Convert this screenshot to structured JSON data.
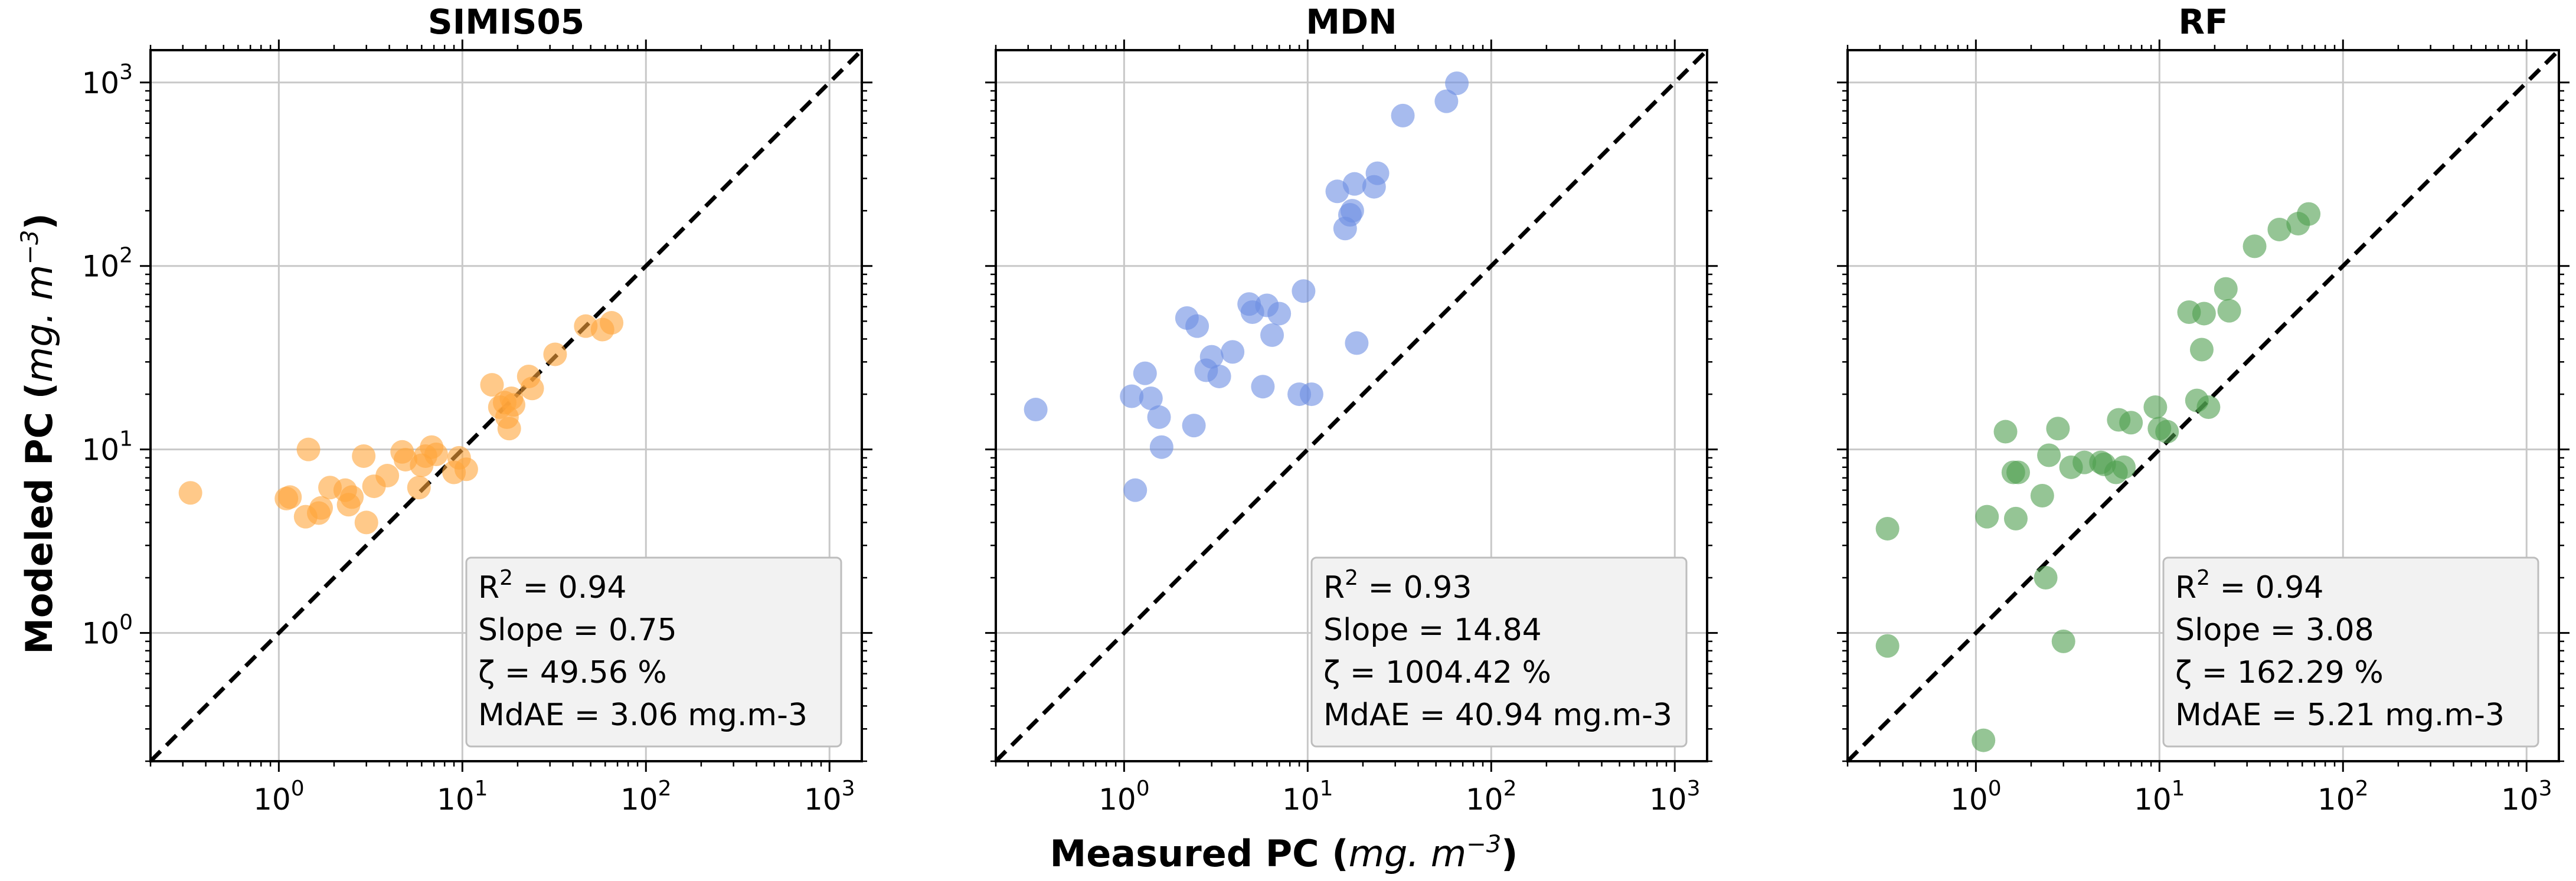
{
  "figure": {
    "xlabel": "Measured PC",
    "xlabel_unit": "mg. m",
    "xlabel_exp": "−3",
    "ylabel": "Modeled PC",
    "ylabel_unit": "mg. m",
    "ylabel_exp": "−3",
    "tick_base": "10",
    "x_tick_exps": [
      "0",
      "1",
      "2",
      "3"
    ],
    "y_tick_exps": [
      "0",
      "1",
      "2",
      "3"
    ]
  },
  "chart_data": [
    {
      "type": "scatter",
      "title": "SIMIS05",
      "xscale": "log",
      "yscale": "log",
      "xlim": [
        0.2,
        1500
      ],
      "ylim": [
        0.2,
        1500
      ],
      "grid": true,
      "reference_line": "1:1 dashed",
      "color": "#ffa53a",
      "stats": {
        "r2_label": "R",
        "r2_exp": "2",
        "r2_value": " = 0.94",
        "slope": "Slope = 0.75",
        "zeta": "ζ = 49.56 %",
        "mdae": "MdAE = 3.06 mg.m-3"
      },
      "x": [
        0.33,
        1.1,
        1.15,
        1.4,
        1.45,
        1.65,
        1.7,
        1.9,
        2.3,
        2.4,
        2.5,
        2.9,
        3.0,
        3.3,
        3.9,
        4.7,
        4.9,
        5.8,
        6.0,
        6.3,
        6.8,
        7.2,
        9.0,
        9.6,
        10.5,
        14.5,
        16.0,
        17.0,
        17.5,
        18.0,
        18.5,
        19.0,
        23.0,
        24.0,
        32.0,
        47.0,
        58.0,
        65.0
      ],
      "y": [
        5.8,
        5.4,
        5.5,
        4.3,
        10.0,
        4.5,
        4.8,
        6.2,
        6.0,
        5.0,
        5.5,
        9.2,
        4.0,
        6.3,
        7.2,
        9.7,
        8.8,
        6.2,
        8.2,
        9.2,
        10.3,
        9.4,
        7.5,
        9.0,
        7.8,
        22.5,
        17.0,
        18.0,
        15.0,
        13.0,
        19.0,
        17.5,
        25.0,
        21.5,
        33.0,
        47.0,
        45.0,
        49.0
      ]
    },
    {
      "type": "scatter",
      "title": "MDN",
      "xscale": "log",
      "yscale": "log",
      "xlim": [
        0.2,
        1500
      ],
      "ylim": [
        0.2,
        1500
      ],
      "grid": true,
      "reference_line": "1:1 dashed",
      "color": "#6c8ee2",
      "stats": {
        "r2_label": "R",
        "r2_exp": "2",
        "r2_value": " = 0.93",
        "slope": "Slope = 14.84",
        "zeta": "ζ = 1004.42 %",
        "mdae": "MdAE = 40.94 mg.m-3"
      },
      "x": [
        0.33,
        1.1,
        1.15,
        1.3,
        1.4,
        1.55,
        1.6,
        2.2,
        2.4,
        2.5,
        2.8,
        3.0,
        3.3,
        3.9,
        4.8,
        5.0,
        5.7,
        6.0,
        6.4,
        7.0,
        9.0,
        9.5,
        10.5,
        14.5,
        16.0,
        17.0,
        17.5,
        18.0,
        18.5,
        23.0,
        24.0,
        33.0,
        57.0,
        65.0
      ],
      "y": [
        16.5,
        19.5,
        6.0,
        26.0,
        19.0,
        15.0,
        10.3,
        52.0,
        13.5,
        47.0,
        27.0,
        32.0,
        25.0,
        34.0,
        62.0,
        56.0,
        22.0,
        61.0,
        42.0,
        55.0,
        20.0,
        73.0,
        20.0,
        255.0,
        160.0,
        190.0,
        200.0,
        280.0,
        38.0,
        270.0,
        320.0,
        660.0,
        790.0,
        990.0
      ]
    },
    {
      "type": "scatter",
      "title": "RF",
      "xscale": "log",
      "yscale": "log",
      "xlim": [
        0.2,
        1500
      ],
      "ylim": [
        0.2,
        1500
      ],
      "grid": true,
      "reference_line": "1:1 dashed",
      "color": "#4e9e4e",
      "stats": {
        "r2_label": "R",
        "r2_exp": "2",
        "r2_value": " = 0.94",
        "slope": "Slope = 3.08",
        "zeta": "ζ = 162.29 %",
        "mdae": "MdAE = 5.21 mg.m-3"
      },
      "x": [
        0.33,
        0.33,
        1.1,
        1.15,
        1.45,
        1.6,
        1.65,
        1.7,
        2.3,
        2.4,
        2.5,
        2.8,
        3.0,
        3.3,
        3.9,
        4.8,
        5.0,
        5.8,
        6.0,
        6.4,
        7.0,
        9.5,
        10.0,
        11.0,
        14.5,
        16.0,
        17.0,
        17.5,
        18.5,
        23.0,
        24.0,
        33.0,
        45.0,
        57.0,
        65.0
      ],
      "y": [
        3.7,
        0.85,
        0.26,
        4.3,
        12.5,
        7.5,
        4.2,
        7.5,
        5.6,
        2.0,
        9.3,
        13.0,
        0.9,
        8.0,
        8.5,
        8.5,
        8.3,
        7.5,
        14.5,
        8.0,
        14.0,
        17.0,
        13.0,
        12.5,
        56.0,
        18.5,
        35.0,
        55.0,
        17.0,
        75.0,
        57.0,
        128.0,
        158.0,
        170.0,
        192.0
      ]
    }
  ]
}
